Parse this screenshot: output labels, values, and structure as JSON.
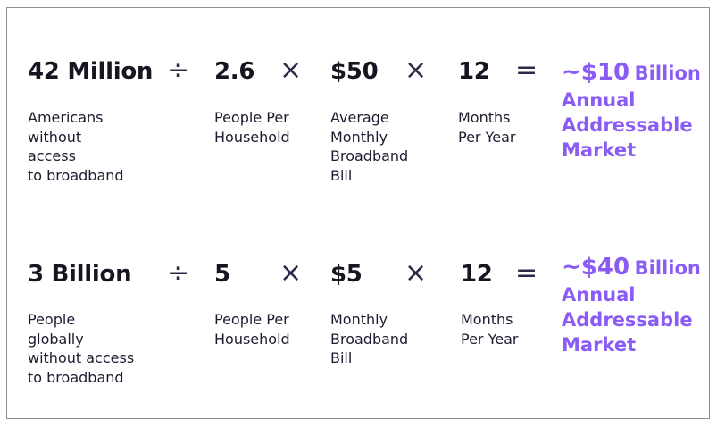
{
  "colors": {
    "text": "#161622",
    "accent": "#8a5cf5",
    "border": "#8e8e96"
  },
  "rows": [
    {
      "terms": [
        {
          "value": "42 Million",
          "label": "Americans\nwithout\naccess\nto broadband"
        },
        {
          "value": "2.6",
          "label": "People Per\nHousehold"
        },
        {
          "value": "$50",
          "label": "Average\nMonthly\nBroadband\nBill"
        },
        {
          "value": "12",
          "label": "Months\nPer Year"
        }
      ],
      "operators": [
        "÷",
        "×",
        "×",
        "="
      ],
      "result": {
        "value": "~$10",
        "unit": "Billion",
        "description": "Annual\nAddressable\nMarket"
      }
    },
    {
      "terms": [
        {
          "value": "3 Billion",
          "label": "People\nglobally\nwithout access\nto broadband"
        },
        {
          "value": "5",
          "label": "People Per\nHousehold"
        },
        {
          "value": "$5",
          "label": "Monthly\nBroadband\nBill"
        },
        {
          "value": "12",
          "label": "Months\nPer Year"
        }
      ],
      "operators": [
        "÷",
        "×",
        "×",
        "="
      ],
      "result": {
        "value": "~$40",
        "unit": "Billion",
        "description": "Annual\nAddressable\nMarket"
      }
    }
  ]
}
